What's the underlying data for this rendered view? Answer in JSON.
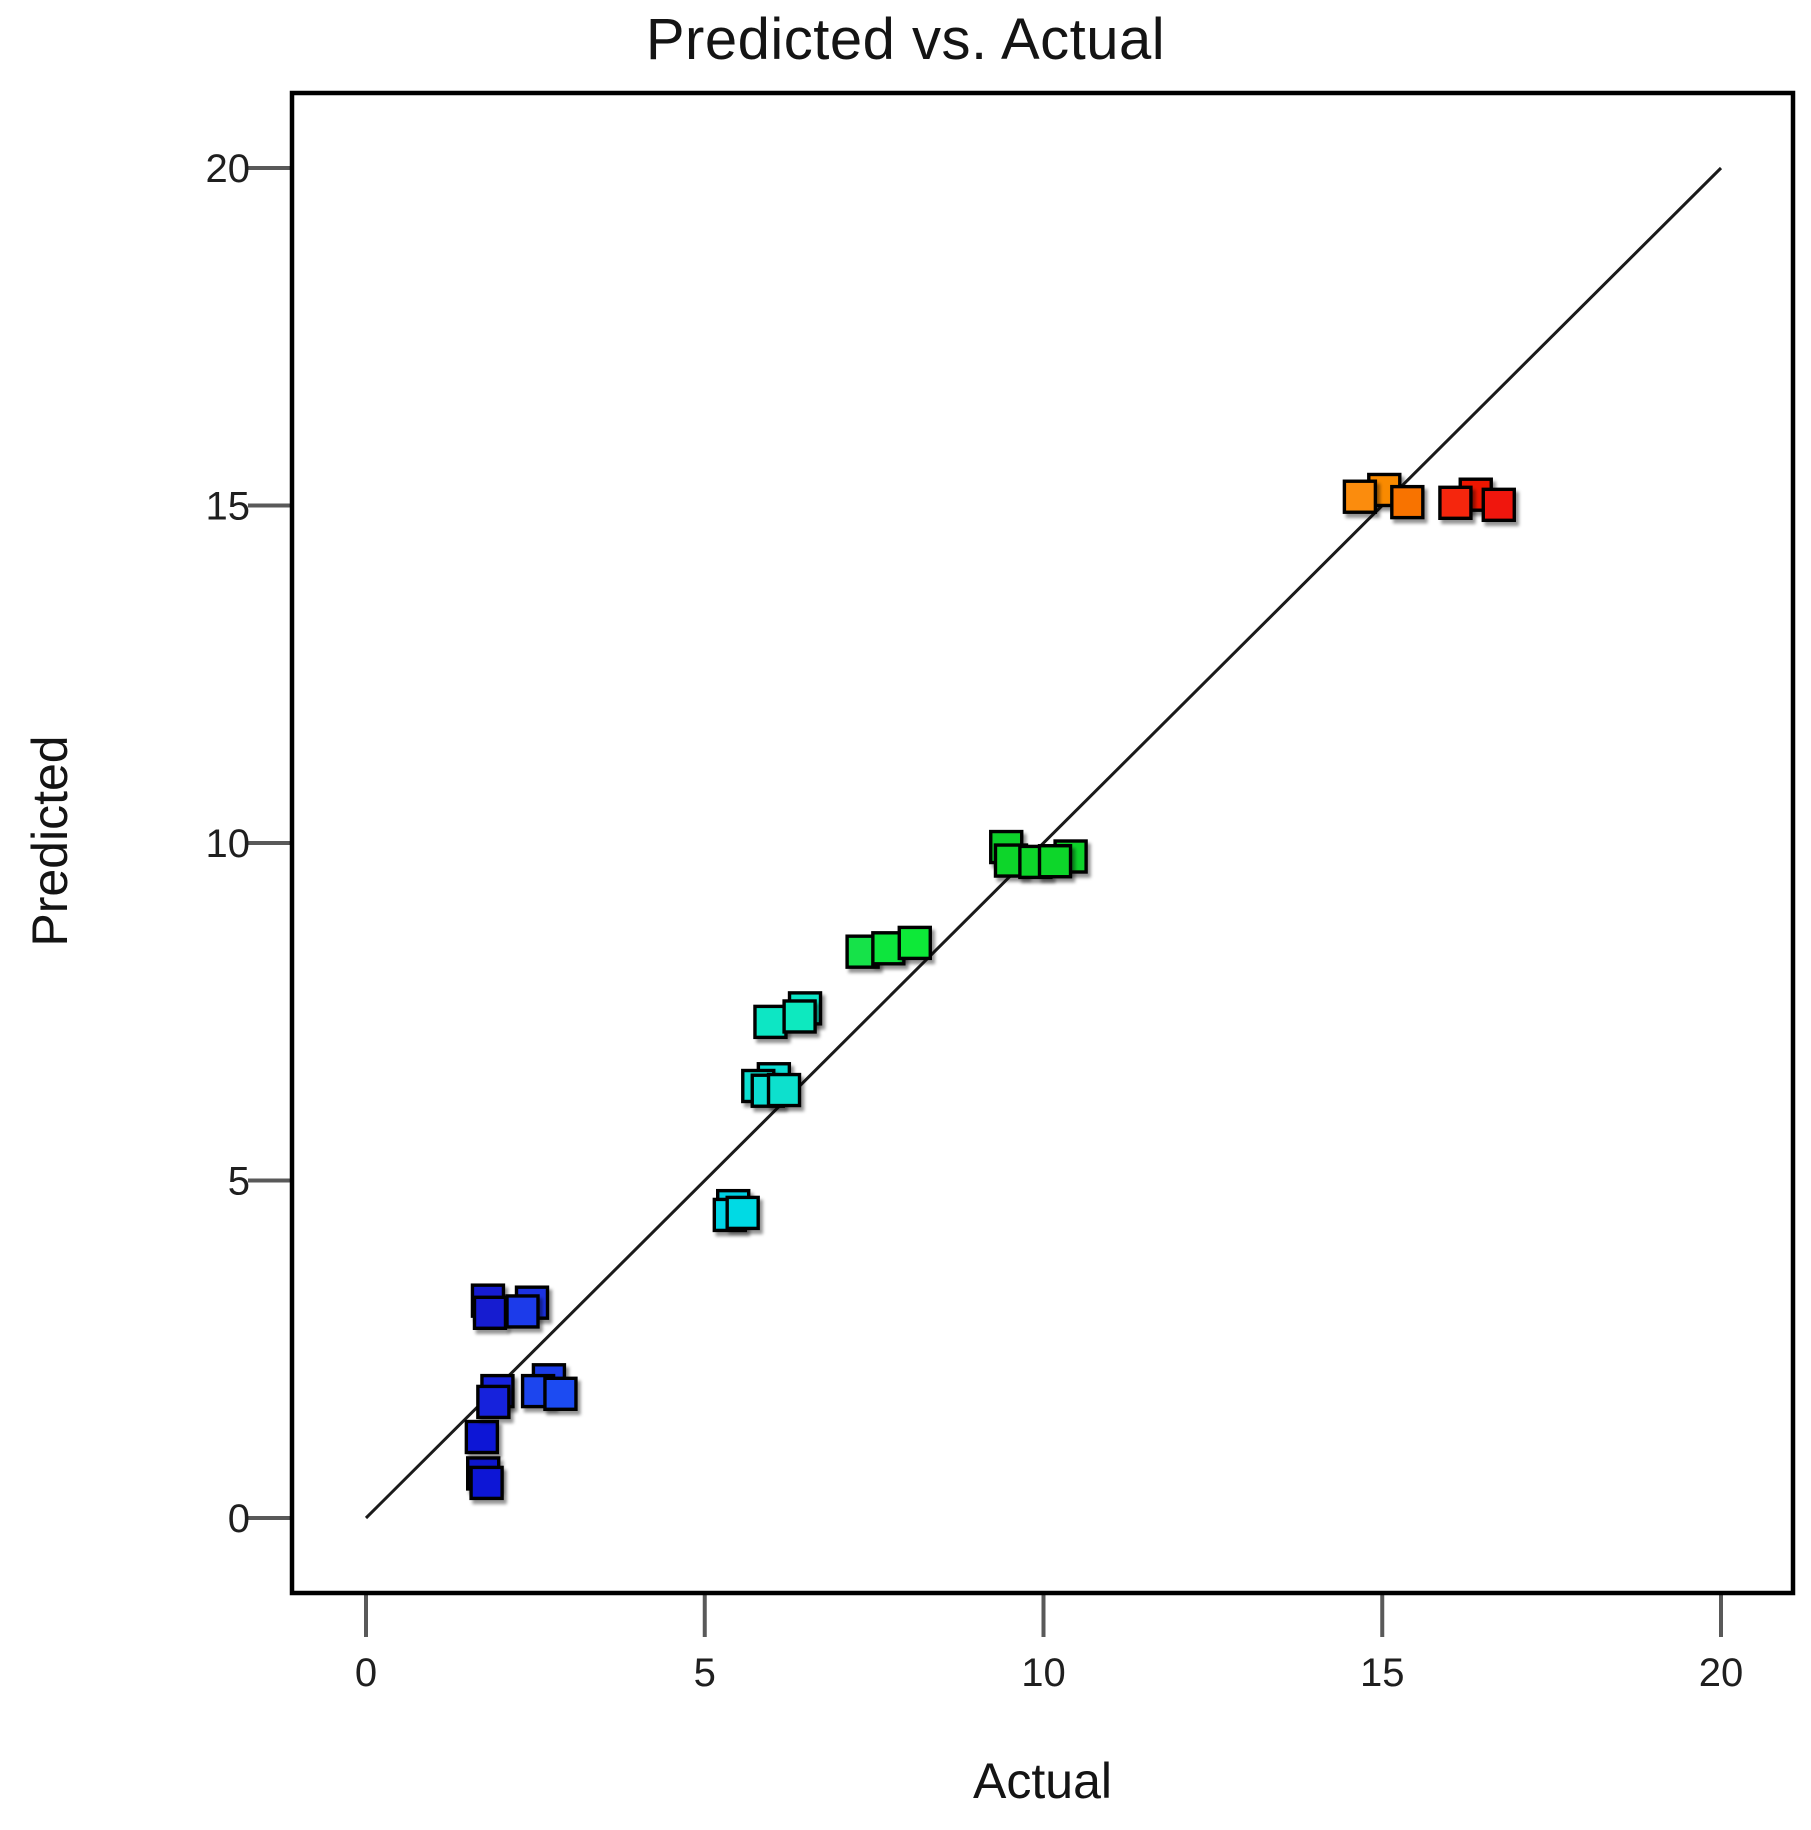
{
  "chart_data": {
    "type": "scatter",
    "title": "Predicted vs. Actual",
    "xlabel": "Actual",
    "ylabel": "Predicted",
    "xlim": [
      0,
      20
    ],
    "ylim": [
      0,
      20
    ],
    "xticks": [
      0,
      5,
      10,
      15,
      20
    ],
    "yticks": [
      0,
      5,
      10,
      15,
      20
    ],
    "grid": false,
    "legend": "none",
    "style": {
      "axis_color": "#000000",
      "tick_color": "#595959",
      "line_color": "#1a1a1a",
      "marker_shape": "square",
      "marker_size_px": 31,
      "marker_stroke": "#000000"
    },
    "identity_line": {
      "from": [
        0,
        0
      ],
      "to": [
        20,
        20
      ]
    },
    "points": [
      {
        "x": 1.73,
        "y": 0.66,
        "color": "#1117cd"
      },
      {
        "x": 1.78,
        "y": 0.52,
        "color": "#1117d6"
      },
      {
        "x": 1.71,
        "y": 1.2,
        "color": "#1117d6"
      },
      {
        "x": 1.94,
        "y": 1.88,
        "color": "#1523dc"
      },
      {
        "x": 1.88,
        "y": 1.72,
        "color": "#1523dc"
      },
      {
        "x": 2.7,
        "y": 2.04,
        "color": "#1c3ce8"
      },
      {
        "x": 2.54,
        "y": 1.88,
        "color": "#1d44ee"
      },
      {
        "x": 2.87,
        "y": 1.84,
        "color": "#1e4cf2"
      },
      {
        "x": 1.8,
        "y": 3.22,
        "color": "#121ad0"
      },
      {
        "x": 1.83,
        "y": 3.04,
        "color": "#121ad0"
      },
      {
        "x": 2.45,
        "y": 3.19,
        "color": "#1a32e2"
      },
      {
        "x": 2.31,
        "y": 3.06,
        "color": "#1c3aea"
      },
      {
        "x": 5.42,
        "y": 4.62,
        "color": "#00cfe2"
      },
      {
        "x": 5.37,
        "y": 4.49,
        "color": "#00d5e6"
      },
      {
        "x": 5.56,
        "y": 4.52,
        "color": "#00dae4"
      },
      {
        "x": 6.02,
        "y": 6.5,
        "color": "#09dcd2"
      },
      {
        "x": 5.79,
        "y": 6.4,
        "color": "#0adfd0"
      },
      {
        "x": 5.93,
        "y": 6.33,
        "color": "#09ddd3"
      },
      {
        "x": 6.17,
        "y": 6.34,
        "color": "#0ae0cd"
      },
      {
        "x": 6.48,
        "y": 7.55,
        "color": "#0de5c6"
      },
      {
        "x": 5.97,
        "y": 7.35,
        "color": "#0de6c4"
      },
      {
        "x": 6.4,
        "y": 7.43,
        "color": "#0ce9bf"
      },
      {
        "x": 7.33,
        "y": 8.39,
        "color": "#12e24a"
      },
      {
        "x": 7.71,
        "y": 8.44,
        "color": "#10e53e"
      },
      {
        "x": 8.1,
        "y": 8.52,
        "color": "#0ee938"
      },
      {
        "x": 9.45,
        "y": 9.94,
        "color": "#10d02c"
      },
      {
        "x": 10.4,
        "y": 9.8,
        "color": "#0fd22a"
      },
      {
        "x": 9.52,
        "y": 9.74,
        "color": "#10d52b"
      },
      {
        "x": 9.88,
        "y": 9.72,
        "color": "#10d52b"
      },
      {
        "x": 10.17,
        "y": 9.73,
        "color": "#0fd62c"
      },
      {
        "x": 15.03,
        "y": 15.23,
        "color": "#f98a02"
      },
      {
        "x": 14.67,
        "y": 15.13,
        "color": "#fb8c10"
      },
      {
        "x": 15.37,
        "y": 15.05,
        "color": "#f87305"
      },
      {
        "x": 16.38,
        "y": 15.16,
        "color": "#ee1206"
      },
      {
        "x": 16.08,
        "y": 15.04,
        "color": "#f52511"
      },
      {
        "x": 16.72,
        "y": 15.01,
        "color": "#f0170a"
      }
    ]
  }
}
